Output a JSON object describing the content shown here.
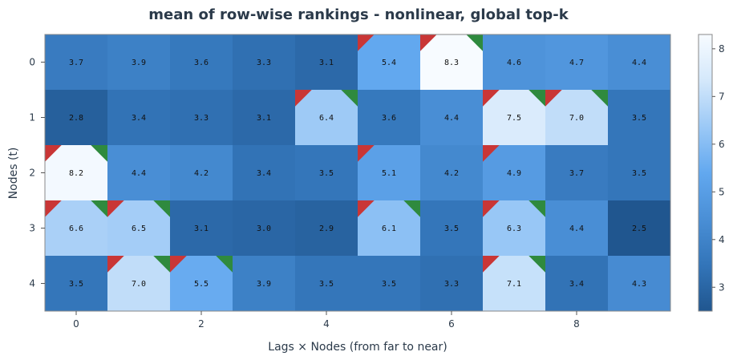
{
  "chart_data": {
    "type": "heatmap",
    "title": "mean of row-wise rankings - nonlinear, global top-k",
    "xlabel": "Lags × Nodes (from far to near)",
    "ylabel": "Nodes (t)",
    "x_ticks": [
      "0",
      "2",
      "4",
      "6",
      "8"
    ],
    "x_tick_values": [
      0,
      2,
      4,
      6,
      8
    ],
    "y_ticks": [
      "0",
      "1",
      "2",
      "3",
      "4"
    ],
    "n_cols": 10,
    "n_rows": 5,
    "values": [
      [
        3.7,
        3.9,
        3.6,
        3.3,
        3.1,
        5.4,
        8.3,
        4.6,
        4.7,
        4.4
      ],
      [
        2.8,
        3.4,
        3.3,
        3.1,
        6.4,
        3.6,
        4.4,
        7.5,
        7.0,
        3.5
      ],
      [
        8.2,
        4.4,
        4.2,
        3.4,
        3.5,
        5.1,
        4.2,
        4.9,
        3.7,
        3.5
      ],
      [
        6.6,
        6.5,
        3.1,
        3.0,
        2.9,
        6.1,
        3.5,
        6.3,
        4.4,
        2.5
      ],
      [
        3.5,
        7.0,
        5.5,
        3.9,
        3.5,
        3.5,
        3.3,
        7.1,
        3.4,
        4.3
      ]
    ],
    "value_labels": [
      [
        "3.7",
        "3.9",
        "3.6",
        "3.3",
        "3.1",
        "5.4",
        "8.3",
        "4.6",
        "4.7",
        "4.4"
      ],
      [
        "2.8",
        "3.4",
        "3.3",
        "3.1",
        "6.4",
        "3.6",
        "4.4",
        "7.5",
        "7.0",
        "3.5"
      ],
      [
        "8.2",
        "4.4",
        "4.2",
        "3.4",
        "3.5",
        "5.1",
        "4.2",
        "4.9",
        "3.7",
        "3.5"
      ],
      [
        "6.6",
        "6.5",
        "3.1",
        "3.0",
        "2.9",
        "6.1",
        "3.5",
        "6.3",
        "4.4",
        "2.5"
      ],
      [
        "3.5",
        "7.0",
        "5.5",
        "3.9",
        "3.5",
        "3.5",
        "3.3",
        "7.1",
        "3.4",
        "4.3"
      ]
    ],
    "markers": [
      {
        "row": 0,
        "col": 5,
        "red": true,
        "green": false
      },
      {
        "row": 0,
        "col": 6,
        "red": true,
        "green": true
      },
      {
        "row": 1,
        "col": 4,
        "red": true,
        "green": true
      },
      {
        "row": 1,
        "col": 7,
        "red": true,
        "green": true
      },
      {
        "row": 1,
        "col": 8,
        "red": true,
        "green": true
      },
      {
        "row": 2,
        "col": 0,
        "red": true,
        "green": true
      },
      {
        "row": 2,
        "col": 5,
        "red": true,
        "green": false
      },
      {
        "row": 2,
        "col": 7,
        "red": true,
        "green": false
      },
      {
        "row": 3,
        "col": 0,
        "red": true,
        "green": true
      },
      {
        "row": 3,
        "col": 1,
        "red": true,
        "green": true
      },
      {
        "row": 3,
        "col": 5,
        "red": true,
        "green": true
      },
      {
        "row": 3,
        "col": 7,
        "red": true,
        "green": true
      },
      {
        "row": 4,
        "col": 1,
        "red": true,
        "green": true
      },
      {
        "row": 4,
        "col": 2,
        "red": true,
        "green": true
      },
      {
        "row": 4,
        "col": 7,
        "red": true,
        "green": true
      }
    ],
    "colorbar": {
      "min": 2.5,
      "max": 8.3,
      "ticks": [
        3,
        4,
        5,
        6,
        7,
        8
      ],
      "tick_labels": [
        "3",
        "4",
        "5",
        "6",
        "7",
        "8"
      ]
    },
    "colormap": [
      "#20568f",
      "#3375b9",
      "#4a8fd6",
      "#62a8ef",
      "#9cc9f6",
      "#d4e8fb",
      "#f7fbff"
    ],
    "marker_colors": {
      "red": "#c93636",
      "green": "#2f8a3e"
    },
    "grid": false
  }
}
